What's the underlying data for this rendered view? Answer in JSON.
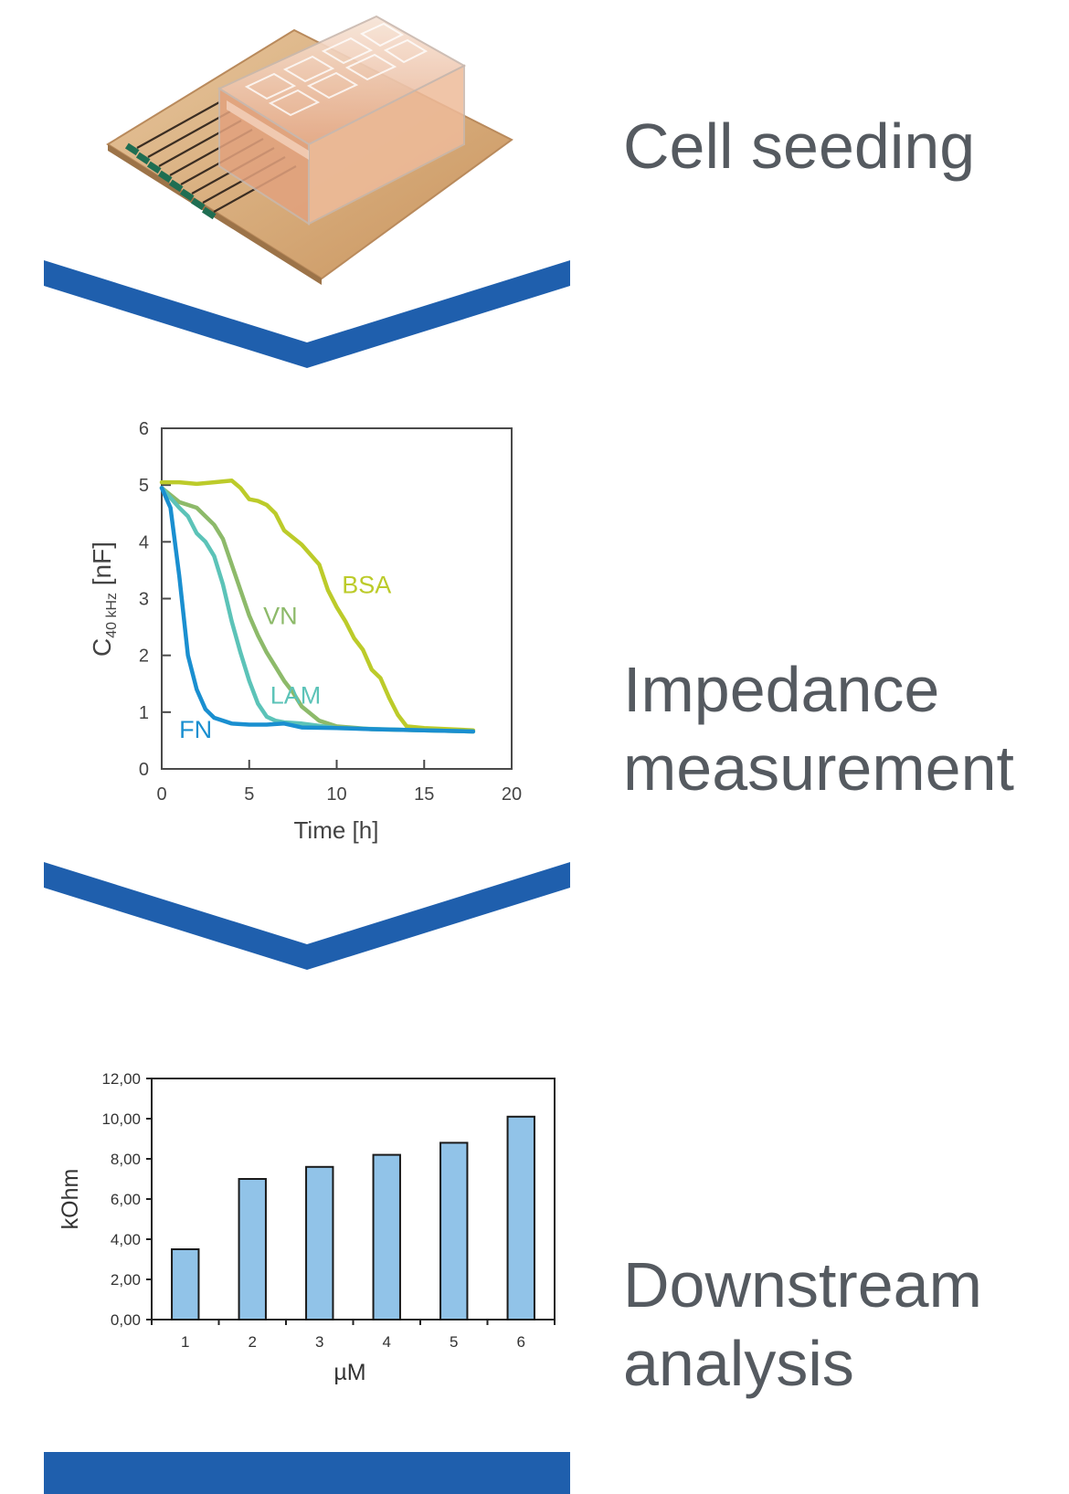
{
  "steps": [
    {
      "label_lines": [
        "Cell seeding"
      ]
    },
    {
      "label_lines": [
        "Impedance",
        "measurement"
      ]
    },
    {
      "label_lines": [
        "Downstream",
        "analysis"
      ]
    }
  ],
  "colors": {
    "chevron": "#1f5fad",
    "label_text": "#555a60",
    "bar_fill": "#91c3e8",
    "FN": "#1a8fd0",
    "LAM": "#5cc3b8",
    "VN": "#8dba6a",
    "BSA": "#bccb2a"
  },
  "icons": {
    "device": "electrode-array-chip-photo",
    "chevron": "chevron-down-icon"
  },
  "chart_data": [
    {
      "type": "line",
      "title": "",
      "xlabel": "Time [h]",
      "ylabel_main": "C",
      "ylabel_sub": "40 kHz",
      "ylabel_unit": " [nF]",
      "xlim": [
        0,
        20
      ],
      "ylim": [
        0,
        6
      ],
      "xticks": [
        0,
        5,
        10,
        15,
        20
      ],
      "yticks": [
        0,
        1,
        2,
        3,
        4,
        5,
        6
      ],
      "grid": false,
      "legend": "inline-labels",
      "series": [
        {
          "name": "FN",
          "x": [
            0,
            0.5,
            1,
            1.5,
            2,
            2.5,
            3,
            4,
            5,
            6,
            7,
            8,
            10,
            12,
            15,
            17.8
          ],
          "y": [
            4.95,
            4.6,
            3.4,
            2.0,
            1.4,
            1.05,
            0.9,
            0.8,
            0.78,
            0.78,
            0.8,
            0.73,
            0.72,
            0.7,
            0.68,
            0.66
          ]
        },
        {
          "name": "LAM",
          "x": [
            0,
            1,
            1.5,
            2,
            2.5,
            3,
            3.5,
            4,
            4.5,
            5,
            5.5,
            6,
            6.5,
            7,
            8,
            10,
            15,
            17.8
          ],
          "y": [
            4.95,
            4.6,
            4.45,
            4.15,
            4.0,
            3.75,
            3.25,
            2.6,
            2.05,
            1.55,
            1.15,
            0.92,
            0.85,
            0.82,
            0.8,
            0.72,
            0.68,
            0.66
          ]
        },
        {
          "name": "VN",
          "x": [
            0,
            1,
            1.5,
            2,
            2.5,
            3,
            3.5,
            4,
            4.5,
            5,
            5.5,
            6,
            6.5,
            7,
            7.5,
            8,
            9,
            10,
            12,
            15,
            17.8
          ],
          "y": [
            4.95,
            4.7,
            4.65,
            4.6,
            4.45,
            4.3,
            4.05,
            3.6,
            3.15,
            2.7,
            2.35,
            2.05,
            1.8,
            1.55,
            1.35,
            1.1,
            0.85,
            0.75,
            0.7,
            0.68,
            0.66
          ]
        },
        {
          "name": "BSA",
          "x": [
            0,
            1,
            2,
            3,
            4,
            4.5,
            5,
            5.5,
            6,
            6.5,
            7,
            8,
            9,
            9.5,
            10,
            10.5,
            11,
            11.5,
            12,
            12.5,
            13,
            13.5,
            14,
            15,
            17.8
          ],
          "y": [
            5.05,
            5.05,
            5.02,
            5.05,
            5.08,
            4.95,
            4.75,
            4.72,
            4.65,
            4.5,
            4.2,
            3.95,
            3.6,
            3.15,
            2.85,
            2.6,
            2.3,
            2.1,
            1.75,
            1.6,
            1.25,
            0.95,
            0.75,
            0.72,
            0.68
          ]
        }
      ],
      "series_labels": [
        {
          "name": "FN",
          "x": 1.0,
          "y": 0.55
        },
        {
          "name": "LAM",
          "x": 6.2,
          "y": 1.15
        },
        {
          "name": "VN",
          "x": 5.8,
          "y": 2.55
        },
        {
          "name": "BSA",
          "x": 10.3,
          "y": 3.1
        }
      ]
    },
    {
      "type": "bar",
      "title": "",
      "xlabel": "µM",
      "ylabel": "kOhm",
      "categories": [
        "1",
        "2",
        "3",
        "4",
        "5",
        "6"
      ],
      "values": [
        3.5,
        7.0,
        7.6,
        8.2,
        8.8,
        10.1
      ],
      "ylim": [
        0,
        12
      ],
      "yticks": [
        "0,00",
        "2,00",
        "4,00",
        "6,00",
        "8,00",
        "10,00",
        "12,00"
      ],
      "ytick_values": [
        0,
        2,
        4,
        6,
        8,
        10,
        12
      ],
      "grid": false,
      "legend": "none"
    }
  ]
}
